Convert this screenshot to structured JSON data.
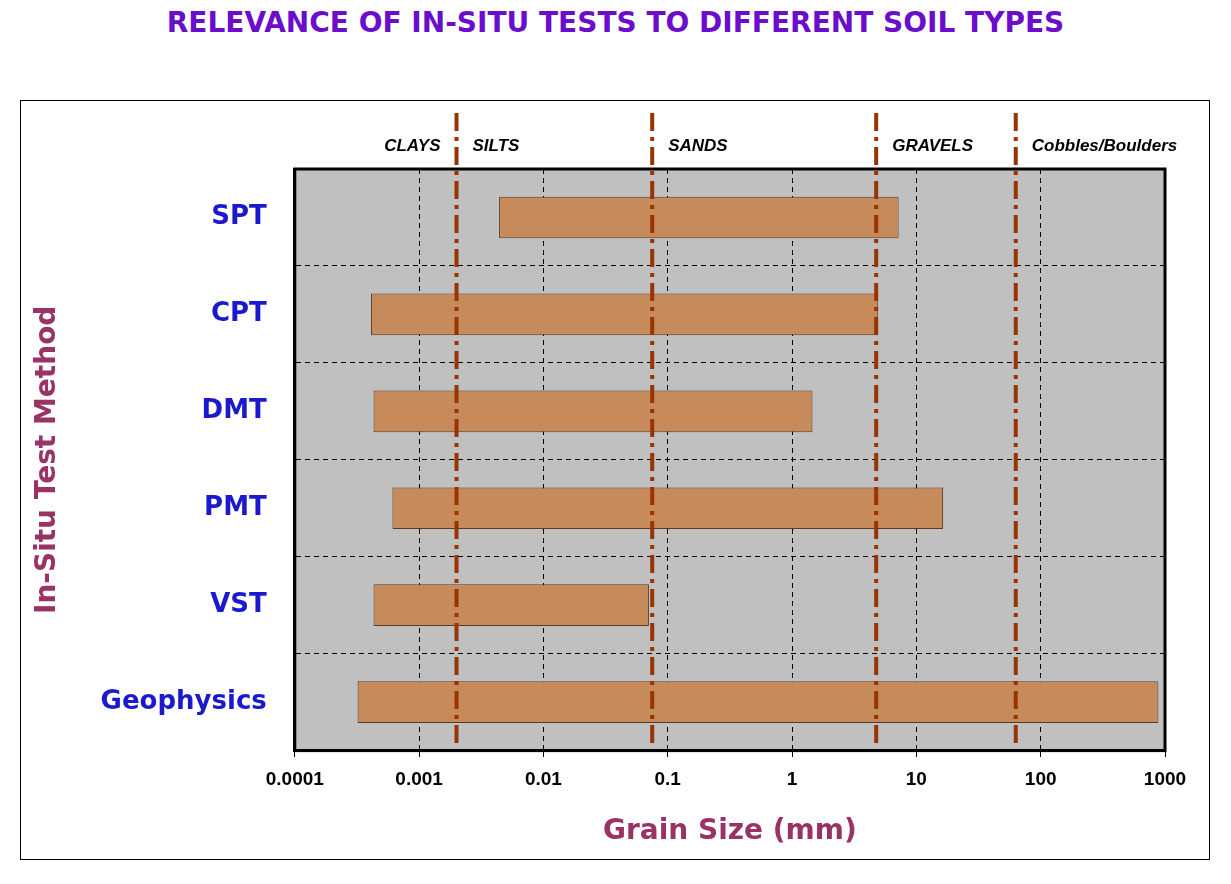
{
  "chart_data": {
    "type": "bar",
    "orientation": "horizontal",
    "title": "RELEVANCE OF IN-SITU TESTS TO DIFFERENT SOIL TYPES",
    "x_label": "Grain Size (mm)",
    "y_label": "In-Situ Test Method",
    "categories": [
      "SPT",
      "CPT",
      "DMT",
      "PMT",
      "VST",
      "Geophysics"
    ],
    "values": [
      [
        0.0044,
        7.2
      ],
      [
        0.00041,
        4.9
      ],
      [
        0.00043,
        1.46
      ],
      [
        0.00061,
        16.4
      ],
      [
        0.00043,
        0.0706
      ],
      [
        0.00032,
        885
      ]
    ],
    "color": "#c68a5b",
    "log": "x",
    "xlim": [
      0.0001,
      1000
    ],
    "xticks": [
      0.0001,
      0.001,
      0.01,
      0.1,
      1,
      10,
      100,
      1000
    ],
    "grid": true,
    "soil_types": [
      "CLAYS",
      "SILTS",
      "SANDS",
      "GRAVELS",
      "Cobbles/Boulders"
    ],
    "soil_boundaries": [
      0.002,
      0.075,
      4.75,
      63
    ],
    "boundary_color": "#993300"
  }
}
